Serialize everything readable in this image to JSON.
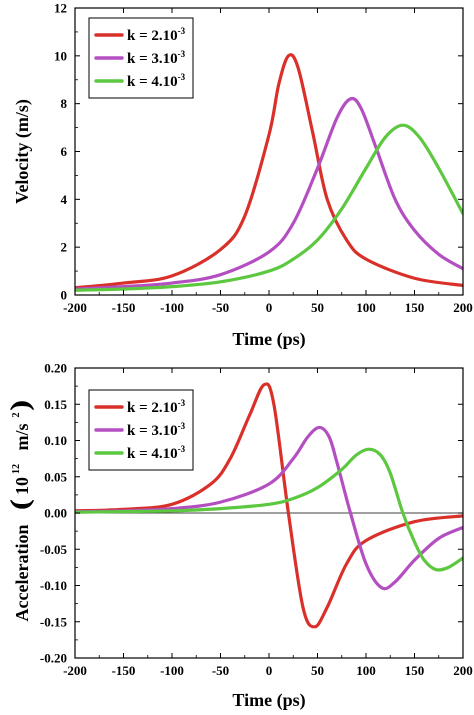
{
  "chart_data": [
    {
      "type": "line",
      "xlabel": "Time (ps)",
      "ylabel": "Velocity (m/s)",
      "xlim": [
        -200,
        200
      ],
      "ylim": [
        0,
        12
      ],
      "xticks": [
        -200,
        -150,
        -100,
        -50,
        0,
        50,
        100,
        150,
        200
      ],
      "yticks": [
        0,
        2,
        4,
        6,
        8,
        10,
        12
      ],
      "legend_position": "top-left",
      "zero_line": false,
      "series": [
        {
          "name": "k = 2.10-3",
          "color": "#d9302a",
          "x": [
            -200,
            -150,
            -100,
            -50,
            -25,
            0,
            10,
            20,
            30,
            45,
            60,
            80,
            100,
            150,
            200
          ],
          "y": [
            0.3,
            0.5,
            0.8,
            1.9,
            3.3,
            6.7,
            8.8,
            10.0,
            9.5,
            6.8,
            4.0,
            2.3,
            1.5,
            0.7,
            0.4
          ]
        },
        {
          "name": "k = 3.10-3",
          "color": "#b44fc2",
          "x": [
            -200,
            -150,
            -100,
            -50,
            0,
            25,
            50,
            70,
            84,
            95,
            110,
            130,
            150,
            175,
            200
          ],
          "y": [
            0.25,
            0.35,
            0.5,
            0.85,
            1.8,
            3.0,
            5.3,
            7.4,
            8.2,
            7.8,
            6.2,
            4.0,
            2.7,
            1.7,
            1.1
          ]
        },
        {
          "name": "k = 4.10-3",
          "color": "#5cc840",
          "x": [
            -200,
            -150,
            -100,
            -50,
            0,
            25,
            50,
            75,
            100,
            120,
            138,
            155,
            175,
            200
          ],
          "y": [
            0.2,
            0.25,
            0.35,
            0.55,
            1.0,
            1.5,
            2.3,
            3.6,
            5.3,
            6.6,
            7.1,
            6.6,
            5.3,
            3.4
          ]
        }
      ],
      "legend_labels": [
        {
          "base": "k = 2.10",
          "sup": "-3"
        },
        {
          "base": "k = 3.10",
          "sup": "-3"
        },
        {
          "base": "k = 4.10",
          "sup": "-3"
        }
      ]
    },
    {
      "type": "line",
      "xlabel": "Time (ps)",
      "ylabel": "Acceleration",
      "ylabel_unit": {
        "base": "10",
        "exp": "12",
        "unit": "m/s",
        "unit_exp": "2"
      },
      "xlim": [
        -200,
        200
      ],
      "ylim": [
        -0.2,
        0.2
      ],
      "xticks": [
        -200,
        -150,
        -100,
        -50,
        0,
        50,
        100,
        150,
        200
      ],
      "yticks": [
        -0.2,
        -0.15,
        -0.1,
        -0.05,
        0.0,
        0.05,
        0.1,
        0.15,
        0.2
      ],
      "ytick_labels": [
        "-0.20",
        "-0.15",
        "-0.10",
        "-0.05",
        "0.00",
        "0.05",
        "0.10",
        "0.15",
        "0.20"
      ],
      "legend_position": "top-left",
      "zero_line": true,
      "series": [
        {
          "name": "k = 2.10-3",
          "color": "#d9302a",
          "x": [
            -200,
            -150,
            -100,
            -60,
            -40,
            -20,
            -5,
            5,
            20,
            35,
            47,
            60,
            80,
            100,
            150,
            200
          ],
          "y": [
            0.003,
            0.005,
            0.012,
            0.04,
            0.075,
            0.135,
            0.177,
            0.15,
            0.0,
            -0.13,
            -0.157,
            -0.13,
            -0.07,
            -0.038,
            -0.012,
            -0.004
          ]
        },
        {
          "name": "k = 3.10-3",
          "color": "#b44fc2",
          "x": [
            -200,
            -150,
            -100,
            -50,
            0,
            25,
            40,
            52,
            62,
            70,
            84,
            100,
            116,
            130,
            150,
            175,
            200
          ],
          "y": [
            0.002,
            0.003,
            0.006,
            0.015,
            0.04,
            0.075,
            0.105,
            0.118,
            0.105,
            0.07,
            0.0,
            -0.07,
            -0.103,
            -0.095,
            -0.065,
            -0.035,
            -0.02
          ]
        },
        {
          "name": "k = 4.10-3",
          "color": "#5cc840",
          "x": [
            -200,
            -150,
            -100,
            -50,
            0,
            25,
            50,
            75,
            90,
            103,
            115,
            125,
            138,
            150,
            160,
            172,
            185,
            200
          ],
          "y": [
            0.001,
            0.002,
            0.003,
            0.006,
            0.012,
            0.02,
            0.035,
            0.06,
            0.08,
            0.088,
            0.08,
            0.055,
            0.0,
            -0.04,
            -0.065,
            -0.078,
            -0.075,
            -0.062
          ]
        }
      ],
      "legend_labels": [
        {
          "base": "k = 2.10",
          "sup": "-3"
        },
        {
          "base": "k = 3.10",
          "sup": "-3"
        },
        {
          "base": "k = 4.10",
          "sup": "-3"
        }
      ]
    }
  ]
}
